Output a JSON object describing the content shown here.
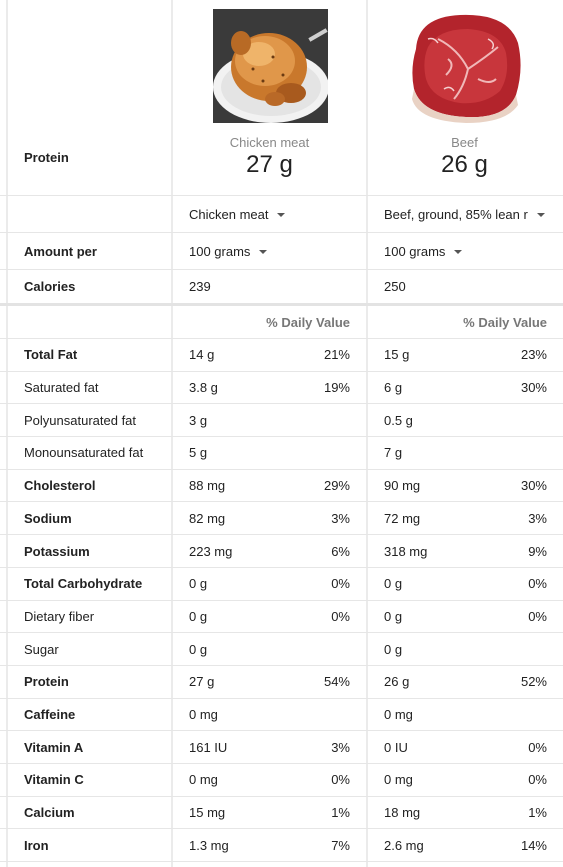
{
  "header": {
    "metric_label": "Protein",
    "foods": [
      {
        "name": "Chicken meat",
        "amount": "27 g"
      },
      {
        "name": "Beef",
        "amount": "26 g"
      }
    ]
  },
  "selectors": {
    "food1": "Chicken meat",
    "food2": "Beef, ground, 85% lean r",
    "amount_label": "Amount per",
    "amount1": "100 grams",
    "amount2": "100 grams"
  },
  "calories": {
    "label": "Calories",
    "v1": "239",
    "v2": "250"
  },
  "daily_value_header": "% Daily Value",
  "nutrients": [
    {
      "label": "Total Fat",
      "bold": true,
      "v1": "14 g",
      "p1": "21%",
      "v2": "15 g",
      "p2": "23%"
    },
    {
      "label": "Saturated fat",
      "bold": false,
      "v1": "3.8 g",
      "p1": "19%",
      "v2": "6 g",
      "p2": "30%"
    },
    {
      "label": "Polyunsaturated fat",
      "bold": false,
      "v1": "3 g",
      "p1": "",
      "v2": "0.5 g",
      "p2": ""
    },
    {
      "label": "Monounsaturated fat",
      "bold": false,
      "v1": "5 g",
      "p1": "",
      "v2": "7 g",
      "p2": ""
    },
    {
      "label": "Cholesterol",
      "bold": true,
      "v1": "88 mg",
      "p1": "29%",
      "v2": "90 mg",
      "p2": "30%"
    },
    {
      "label": "Sodium",
      "bold": true,
      "v1": "82 mg",
      "p1": "3%",
      "v2": "72 mg",
      "p2": "3%"
    },
    {
      "label": "Potassium",
      "bold": true,
      "v1": "223 mg",
      "p1": "6%",
      "v2": "318 mg",
      "p2": "9%"
    },
    {
      "label": "Total Carbohydrate",
      "bold": true,
      "v1": "0 g",
      "p1": "0%",
      "v2": "0 g",
      "p2": "0%"
    },
    {
      "label": "Dietary fiber",
      "bold": false,
      "v1": "0 g",
      "p1": "0%",
      "v2": "0 g",
      "p2": "0%"
    },
    {
      "label": "Sugar",
      "bold": false,
      "v1": "0 g",
      "p1": "",
      "v2": "0 g",
      "p2": ""
    },
    {
      "label": "Protein",
      "bold": true,
      "v1": "27 g",
      "p1": "54%",
      "v2": "26 g",
      "p2": "52%"
    },
    {
      "label": "Caffeine",
      "bold": true,
      "v1": "0 mg",
      "p1": "",
      "v2": "0 mg",
      "p2": ""
    },
    {
      "label": "Vitamin A",
      "bold": true,
      "v1": "161 IU",
      "p1": "3%",
      "v2": "0 IU",
      "p2": "0%"
    },
    {
      "label": "Vitamin C",
      "bold": true,
      "v1": "0 mg",
      "p1": "0%",
      "v2": "0 mg",
      "p2": "0%"
    },
    {
      "label": "Calcium",
      "bold": true,
      "v1": "15 mg",
      "p1": "1%",
      "v2": "18 mg",
      "p2": "1%"
    },
    {
      "label": "Iron",
      "bold": true,
      "v1": "1.3 mg",
      "p1": "7%",
      "v2": "2.6 mg",
      "p2": "14%"
    }
  ]
}
